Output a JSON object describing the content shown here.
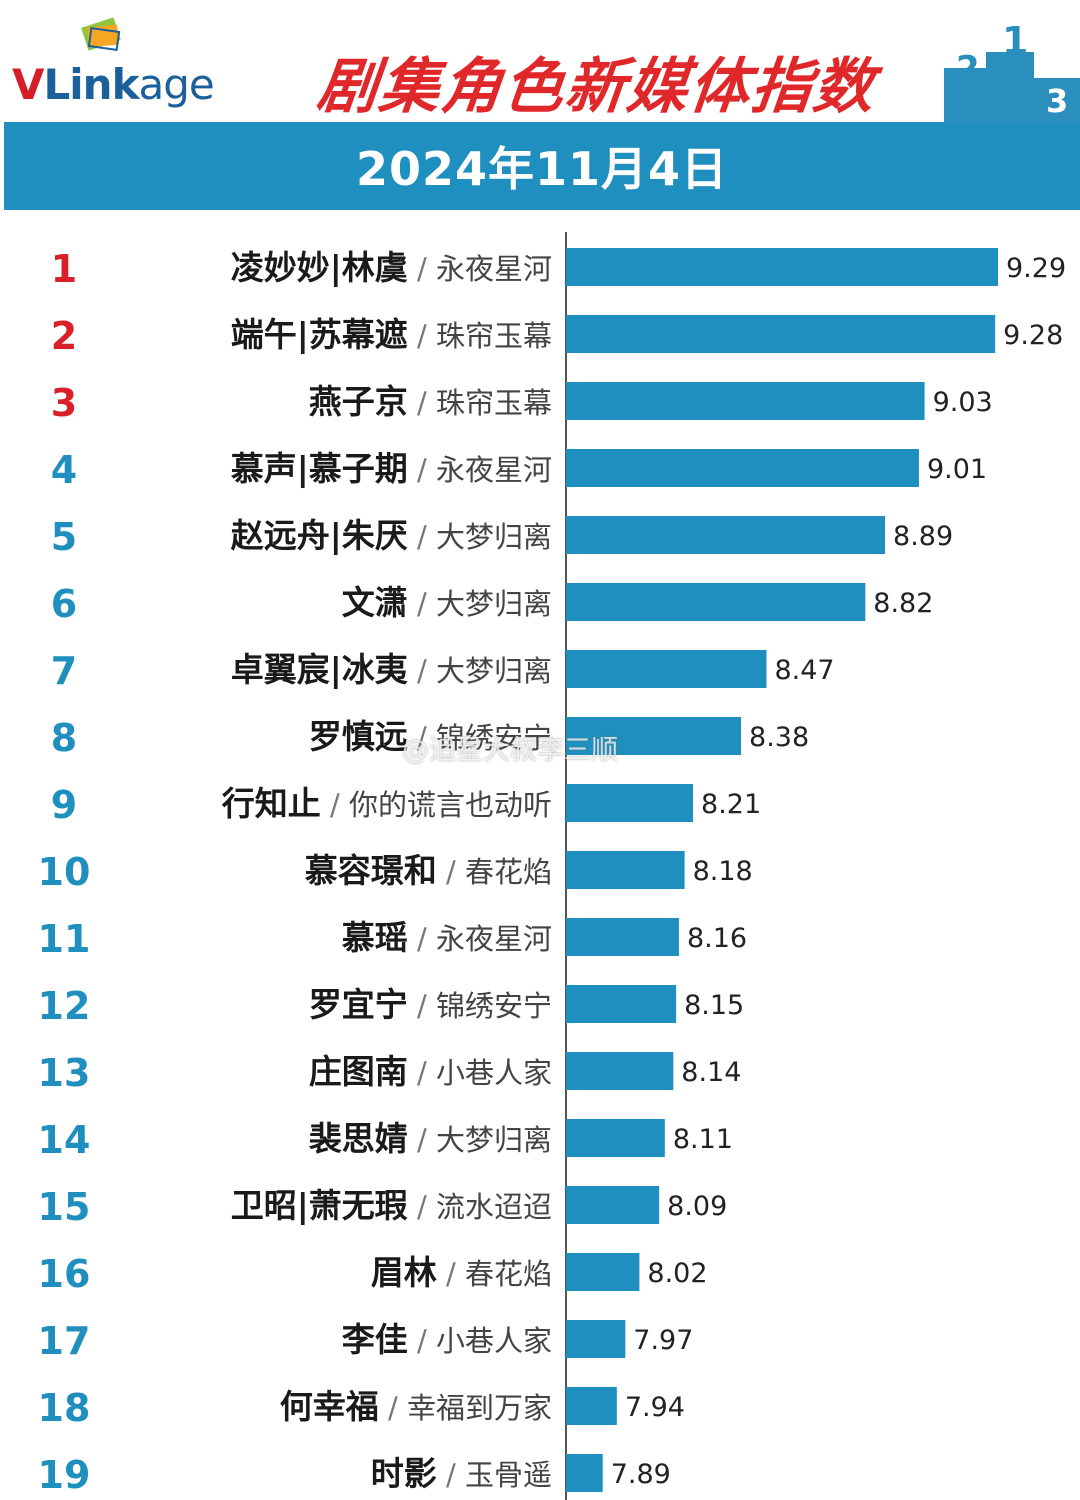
{
  "header": {
    "logo_text": "VLinkage",
    "title": "剧集角色新媒体指数",
    "date": "2024年11月4日"
  },
  "colors": {
    "bar": "#1f8fbf",
    "rank_top": "#d91f2a",
    "rank_other": "#1f8fbf",
    "name": "#1a1a1a",
    "drama": "#444444",
    "value": "#222222"
  },
  "icons": [
    "vlinkage-logo-icon",
    "podium-icon"
  ],
  "watermark": "@追星大叔李三顺",
  "chart_data": {
    "type": "bar",
    "orientation": "horizontal",
    "title": "剧集角色新媒体指数",
    "categories": [
      {
        "rank": "1",
        "name": "凌妙妙|林虞",
        "drama": "永夜星河"
      },
      {
        "rank": "2",
        "name": "端午|苏幕遮",
        "drama": "珠帘玉幕"
      },
      {
        "rank": "3",
        "name": "燕子京",
        "drama": "珠帘玉幕"
      },
      {
        "rank": "4",
        "name": "慕声|慕子期",
        "drama": "永夜星河"
      },
      {
        "rank": "5",
        "name": "赵远舟|朱厌",
        "drama": "大梦归离"
      },
      {
        "rank": "6",
        "name": "文潇",
        "drama": "大梦归离"
      },
      {
        "rank": "7",
        "name": "卓翼宸|冰夷",
        "drama": "大梦归离"
      },
      {
        "rank": "8",
        "name": "罗慎远",
        "drama": "锦绣安宁"
      },
      {
        "rank": "9",
        "name": "行知止",
        "drama": "你的谎言也动听"
      },
      {
        "rank": "10",
        "name": "慕容璟和",
        "drama": "春花焰"
      },
      {
        "rank": "11",
        "name": "慕瑶",
        "drama": "永夜星河"
      },
      {
        "rank": "12",
        "name": "罗宜宁",
        "drama": "锦绣安宁"
      },
      {
        "rank": "13",
        "name": "庄图南",
        "drama": "小巷人家"
      },
      {
        "rank": "14",
        "name": "裴思婧",
        "drama": "大梦归离"
      },
      {
        "rank": "15",
        "name": "卫昭|萧无瑕",
        "drama": "流水迢迢"
      },
      {
        "rank": "16",
        "name": "眉林",
        "drama": "春花焰"
      },
      {
        "rank": "17",
        "name": "李佳",
        "drama": "小巷人家"
      },
      {
        "rank": "18",
        "name": "何幸福",
        "drama": "幸福到万家"
      },
      {
        "rank": "19",
        "name": "时影",
        "drama": "玉骨遥"
      }
    ],
    "values": [
      9.29,
      9.28,
      9.03,
      9.01,
      8.89,
      8.82,
      8.47,
      8.38,
      8.21,
      8.18,
      8.16,
      8.15,
      8.14,
      8.11,
      8.09,
      8.02,
      7.97,
      7.94,
      7.89
    ],
    "value_labels": [
      "9.29",
      "9.28",
      "9.03",
      "9.01",
      "8.89",
      "8.82",
      "8.47",
      "8.38",
      "8.21",
      "8.18",
      "8.16",
      "8.15",
      "8.14",
      "8.11",
      "8.09",
      "8.02",
      "7.97",
      "7.94",
      "7.89"
    ],
    "xlim": [
      7.76,
      9.29
    ],
    "grid": false,
    "legend": "none"
  }
}
